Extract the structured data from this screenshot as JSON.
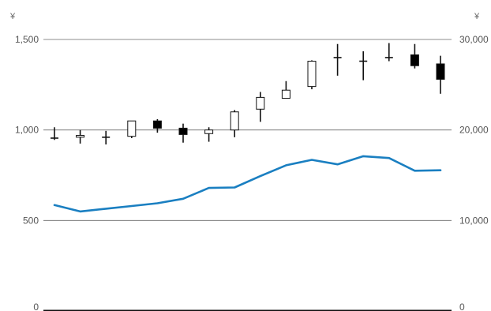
{
  "chart_data": {
    "type": "candlestick+line",
    "title": "",
    "grid": true,
    "legend": "none",
    "colors": {
      "gridline": "#666666",
      "axis": "#111111",
      "candle_up_fill": "#ffffff",
      "candle_down_fill": "#000000",
      "candle_stroke": "#111111",
      "line": "#1a7fc1",
      "text": "#555555"
    },
    "left_axis": {
      "unit": "¥",
      "ylim": [
        0,
        1500
      ],
      "ticks": [
        {
          "value": 0,
          "label": "0"
        },
        {
          "value": 500,
          "label": "500"
        },
        {
          "value": 1000,
          "label": "1,000"
        },
        {
          "value": 1500,
          "label": "1,500"
        }
      ]
    },
    "right_axis": {
      "unit": "¥",
      "ylim": [
        0,
        30000
      ],
      "ticks": [
        {
          "value": 0,
          "label": "0"
        },
        {
          "value": 10000,
          "label": "10,000"
        },
        {
          "value": 20000,
          "label": "20,000"
        },
        {
          "value": 30000,
          "label": "30,000"
        }
      ]
    },
    "candles": [
      {
        "open": 955,
        "high": 1015,
        "low": 945,
        "close": 955
      },
      {
        "open": 960,
        "high": 1000,
        "low": 925,
        "close": 970
      },
      {
        "open": 960,
        "high": 995,
        "low": 920,
        "close": 960
      },
      {
        "open": 965,
        "high": 1050,
        "low": 955,
        "close": 1050
      },
      {
        "open": 1050,
        "high": 1060,
        "low": 985,
        "close": 1010
      },
      {
        "open": 1010,
        "high": 1035,
        "low": 930,
        "close": 975
      },
      {
        "open": 980,
        "high": 1015,
        "low": 935,
        "close": 1000
      },
      {
        "open": 1000,
        "high": 1110,
        "low": 960,
        "close": 1100
      },
      {
        "open": 1115,
        "high": 1210,
        "low": 1045,
        "close": 1180
      },
      {
        "open": 1175,
        "high": 1270,
        "low": 1175,
        "close": 1220
      },
      {
        "open": 1240,
        "high": 1385,
        "low": 1225,
        "close": 1380
      },
      {
        "open": 1400,
        "high": 1475,
        "low": 1300,
        "close": 1400
      },
      {
        "open": 1380,
        "high": 1435,
        "low": 1275,
        "close": 1380
      },
      {
        "open": 1400,
        "high": 1480,
        "low": 1380,
        "close": 1400
      },
      {
        "open": 1415,
        "high": 1475,
        "low": 1340,
        "close": 1355
      },
      {
        "open": 1365,
        "high": 1410,
        "low": 1200,
        "close": 1280
      }
    ],
    "line_series": {
      "axis": "right",
      "values": [
        11700,
        11000,
        11300,
        11600,
        11900,
        12400,
        13600,
        13650,
        14900,
        16100,
        16700,
        16200,
        17100,
        16900,
        15500,
        15550
      ]
    }
  }
}
